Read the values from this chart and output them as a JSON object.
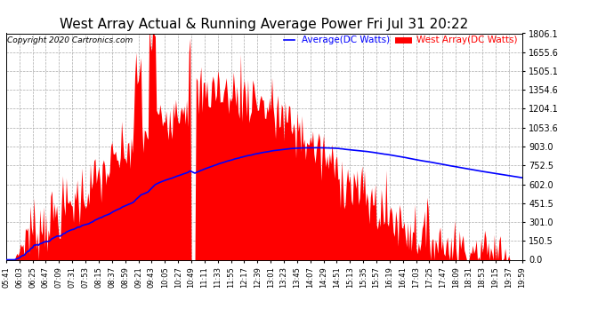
{
  "title": "West Array Actual & Running Average Power Fri Jul 31 20:22",
  "copyright": "Copyright 2020 Cartronics.com",
  "legend_avg": "Average(DC Watts)",
  "legend_west": "West Array(DC Watts)",
  "avg_color": "blue",
  "west_color": "red",
  "background_color": "white",
  "yticks": [
    0.0,
    150.5,
    301.0,
    451.5,
    602.0,
    752.5,
    903.0,
    1053.6,
    1204.1,
    1354.6,
    1505.1,
    1655.6,
    1806.1
  ],
  "ymax": 1806.1,
  "ymin": 0.0,
  "title_fontsize": 11,
  "label_fontsize": 7,
  "xtick_labels": [
    "05:41",
    "06:03",
    "06:25",
    "06:47",
    "07:09",
    "07:31",
    "07:53",
    "08:15",
    "08:37",
    "08:59",
    "09:21",
    "09:43",
    "10:05",
    "10:27",
    "10:49",
    "11:11",
    "11:33",
    "11:55",
    "12:17",
    "12:39",
    "13:01",
    "13:23",
    "13:45",
    "14:07",
    "14:29",
    "14:51",
    "15:13",
    "15:35",
    "15:57",
    "16:19",
    "16:41",
    "17:03",
    "17:25",
    "17:47",
    "18:09",
    "18:31",
    "18:53",
    "19:15",
    "19:37",
    "19:59"
  ]
}
